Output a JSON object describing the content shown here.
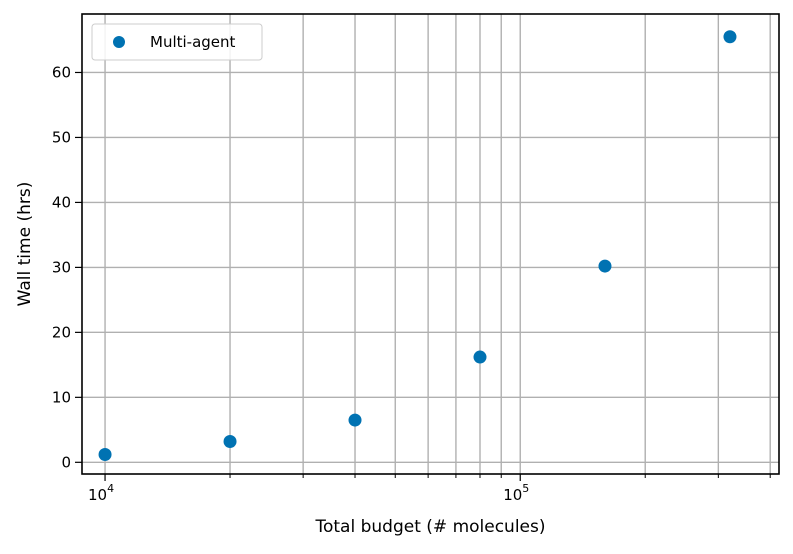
{
  "chart_data": {
    "type": "scatter",
    "xscale": "log",
    "xlim": [
      8800,
      420000
    ],
    "ylim": [
      -1.8,
      69.0
    ],
    "xlabel": "Total budget (# molecules)",
    "ylabel": "Wall time (hrs)",
    "grid": true,
    "legend": "top-left",
    "x_major_ticks": [
      10000,
      100000
    ],
    "x_major_tick_labels": [
      {
        "base": "10",
        "exp": "4"
      },
      {
        "base": "10",
        "exp": "5"
      }
    ],
    "x_minor_ticks": [
      20000,
      30000,
      40000,
      50000,
      60000,
      70000,
      80000,
      90000,
      200000,
      300000,
      400000
    ],
    "y_ticks": [
      0,
      10,
      20,
      30,
      40,
      50,
      60
    ],
    "y_tick_labels": [
      "0",
      "10",
      "20",
      "30",
      "40",
      "50",
      "60"
    ],
    "series": [
      {
        "name": "Multi-agent",
        "color": "#0072b2",
        "marker": "circle",
        "x": [
          10000,
          20000,
          40000,
          80000,
          160000,
          320000
        ],
        "y": [
          1.2,
          3.2,
          6.5,
          16.2,
          30.2,
          65.5
        ]
      }
    ]
  }
}
